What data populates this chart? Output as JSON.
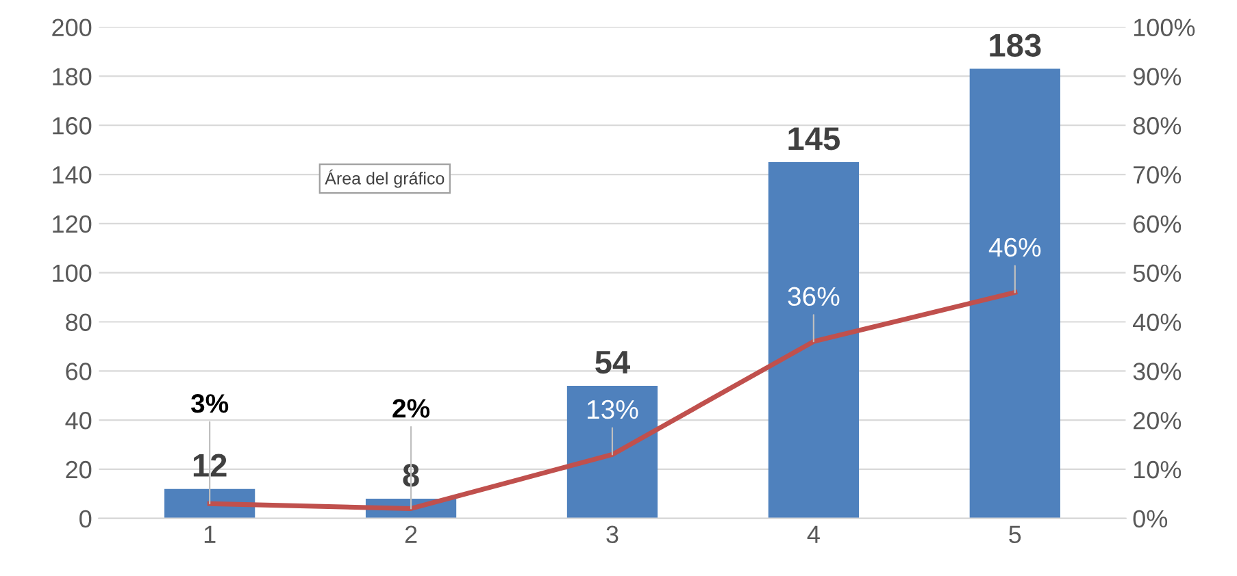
{
  "chart_data": {
    "type": "bar",
    "categories": [
      "1",
      "2",
      "3",
      "4",
      "5"
    ],
    "series": [
      {
        "color": "#4f81bd",
        "values": [
          12,
          8,
          54,
          145,
          183
        ],
        "value_labels": [
          "12",
          "8",
          "54",
          "145",
          "183"
        ]
      },
      {
        "type": "line",
        "axis": "y2",
        "color": "#c0504d",
        "values": [
          3,
          2,
          13,
          36,
          46
        ],
        "value_labels": [
          "3%",
          "2%",
          "13%",
          "36%",
          "46%"
        ],
        "marker": "none"
      }
    ],
    "ylim": [
      0,
      200
    ],
    "yticks": [
      0,
      20,
      40,
      60,
      80,
      100,
      120,
      140,
      160,
      180,
      200
    ],
    "y2lim": [
      0,
      100
    ],
    "y2ticks": [
      {
        "value": 0,
        "label": "0%"
      },
      {
        "value": 10,
        "label": "10%"
      },
      {
        "value": 20,
        "label": "20%"
      },
      {
        "value": 30,
        "label": "30%"
      },
      {
        "value": 40,
        "label": "40%"
      },
      {
        "value": 50,
        "label": "50%"
      },
      {
        "value": 60,
        "label": "60%"
      },
      {
        "value": 70,
        "label": "70%"
      },
      {
        "value": 80,
        "label": "80%"
      },
      {
        "value": 90,
        "label": "90%"
      },
      {
        "value": 100,
        "label": "100%"
      }
    ],
    "grid": "y",
    "legend": false,
    "annotations": [
      "Área del gráfico"
    ]
  }
}
